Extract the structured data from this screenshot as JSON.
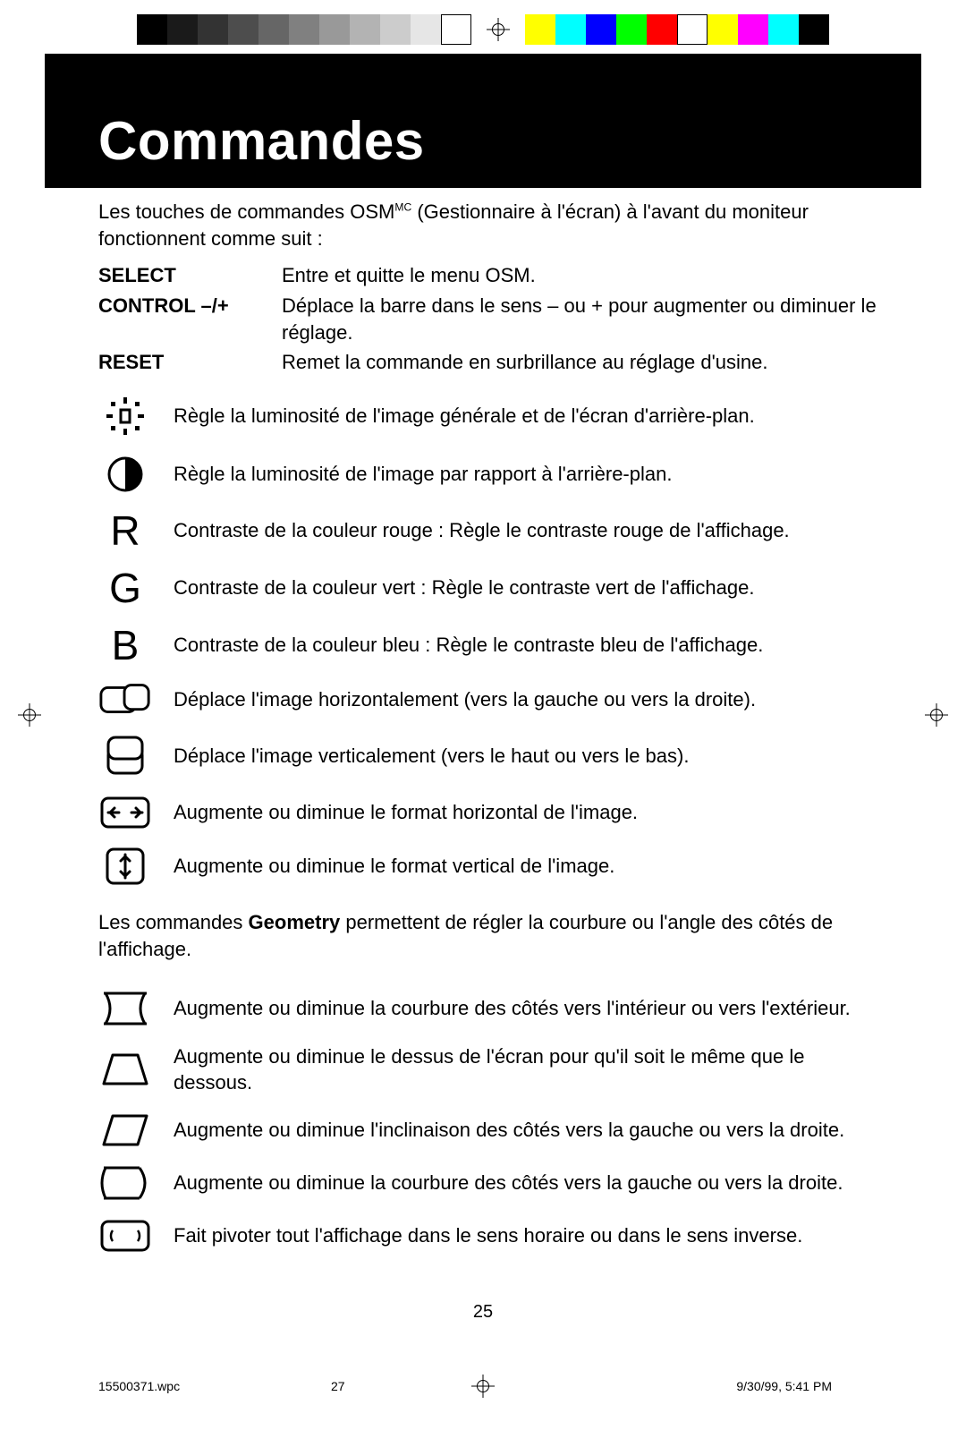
{
  "colorbar": {
    "left": [
      "#000000",
      "#1a1a1a",
      "#333333",
      "#4d4d4d",
      "#666666",
      "#808080",
      "#999999",
      "#b3b3b3",
      "#cccccc",
      "#e6e6e6",
      "#ffffff"
    ],
    "right": [
      "#ffff00",
      "#00ffff",
      "#0000ff",
      "#00ff00",
      "#ff0000",
      "#ffffff",
      "#ffff00",
      "#ff00ff",
      "#00ffff",
      "#000000"
    ],
    "swatch_border_last_left": "#000000"
  },
  "header": {
    "title": "Commandes"
  },
  "intro": {
    "text_before": "Les touches de commandes  OSM",
    "sup": "MC",
    "text_after": " (Gestionnaire à l'écran) à l'avant du moniteur fonctionnent comme suit :"
  },
  "defs": [
    {
      "term": "SELECT",
      "desc": "Entre et quitte le menu OSM."
    },
    {
      "term": "CONTROL –/+",
      "desc": "Déplace la barre dans le sens – ou + pour augmenter ou diminuer le réglage."
    },
    {
      "term": "RESET",
      "desc": "Remet la commande en surbrillance au réglage d'usine."
    }
  ],
  "icons": {
    "brightness": {
      "name": "brightness-icon",
      "desc": "Règle la luminosité de l'image générale et de l'écran d'arrière-plan."
    },
    "contrast": {
      "name": "contrast-icon",
      "desc": "Règle la luminosité de l'image par rapport à l'arrière-plan."
    },
    "red": {
      "name": "red-letter-icon",
      "letter": "R",
      "desc": "Contraste de la couleur rouge : Règle le contraste rouge de l'affichage."
    },
    "green": {
      "name": "green-letter-icon",
      "letter": "G",
      "desc": "Contraste de la couleur vert : Règle le contraste vert de l'affichage."
    },
    "blue": {
      "name": "blue-letter-icon",
      "letter": "B",
      "desc": "Contraste de la couleur bleu : Règle le contraste bleu de l'affichage."
    },
    "hpos": {
      "name": "horizontal-position-icon",
      "desc": "Déplace l'image horizontalement (vers la gauche ou vers la droite)."
    },
    "vpos": {
      "name": "vertical-position-icon",
      "desc": "Déplace l'image verticalement (vers le haut ou vers le bas)."
    },
    "hsize": {
      "name": "horizontal-size-icon",
      "desc": "Augmente ou diminue le format horizontal de l'image."
    },
    "vsize": {
      "name": "vertical-size-icon",
      "desc": "Augmente ou diminue le format vertical de l'image."
    }
  },
  "geometry_intro": {
    "before": "Les commandes ",
    "bold": "Geometry",
    "after": " permettent de régler la courbure ou l'angle des côtés de l'affichage."
  },
  "geometry": {
    "pincushion": {
      "name": "pincushion-icon",
      "desc": "Augmente ou diminue la courbure des côtés vers l'intérieur ou vers l'extérieur."
    },
    "trapezoid": {
      "name": "trapezoid-icon",
      "desc": "Augmente ou diminue le dessus de l'écran pour qu'il soit le même que le dessous."
    },
    "parallel": {
      "name": "parallelogram-icon",
      "desc": "Augmente ou diminue l'inclinaison des côtés vers la gauche ou vers la droite."
    },
    "bow": {
      "name": "bow-icon",
      "desc": "Augmente ou diminue la courbure des côtés vers la gauche ou vers la droite."
    },
    "rotate": {
      "name": "rotate-icon",
      "desc": "Fait pivoter tout l'affichage dans le sens horaire ou dans le sens inverse."
    }
  },
  "page_number": "25",
  "footer": {
    "filename": "15500371.wpc",
    "sheet": "27",
    "datetime": "9/30/99, 5:41 PM"
  },
  "style": {
    "header_bg": "#000000",
    "header_fg": "#ffffff",
    "body_fg": "#000000",
    "body_bg": "#ffffff",
    "title_fontsize": 60,
    "body_fontsize": 22,
    "footer_fontsize": 14,
    "icon_stroke": "#000000",
    "icon_stroke_width": 2.5
  }
}
